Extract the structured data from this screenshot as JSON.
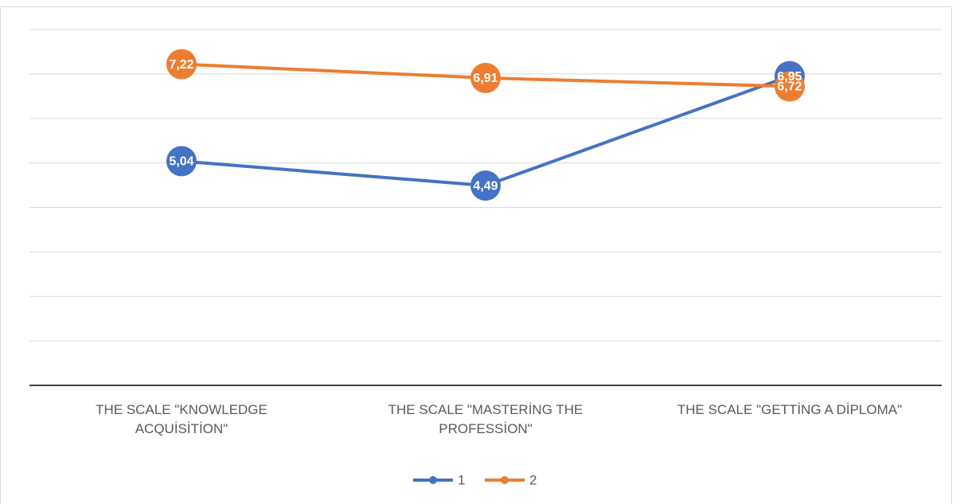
{
  "chart_data": {
    "type": "line",
    "categories": [
      "THE SCALE \"KNOWLEDGE ACQUİSİTİON\"",
      "THE SCALE \"MASTERİNG THE PROFESSİON\"",
      "THE SCALE \"GETTİNG A DİPLOMA\""
    ],
    "series": [
      {
        "name": "1",
        "color": "#4472c4",
        "values": [
          5.04,
          4.49,
          6.95
        ],
        "value_labels": [
          "5,04",
          "4,49",
          "6,95"
        ]
      },
      {
        "name": "2",
        "color": "#ed7d31",
        "values": [
          7.22,
          6.91,
          6.72
        ],
        "value_labels": [
          "7,22",
          "6,91",
          "6,72"
        ]
      }
    ],
    "ylim": [
      0,
      8
    ],
    "yticks": [
      0,
      1,
      2,
      3,
      4,
      5,
      6,
      7,
      8
    ],
    "grid": true,
    "legend": "bottom"
  }
}
